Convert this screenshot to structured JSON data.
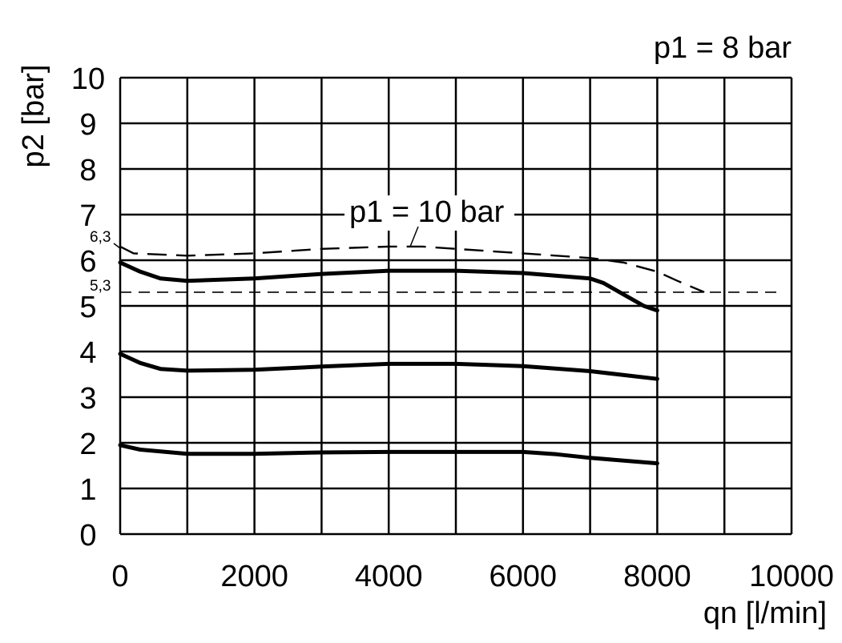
{
  "chart_data": {
    "type": "line",
    "title": "",
    "xlabel": "qn [l/min]",
    "ylabel": "p2 [bar]",
    "xlim": [
      0,
      10000
    ],
    "ylim": [
      0,
      10
    ],
    "x_ticks": [
      "0",
      "2000",
      "4000",
      "6000",
      "8000",
      "10000"
    ],
    "y_ticks": [
      "0",
      "1",
      "2",
      "3",
      "4",
      "5",
      "6",
      "7",
      "8",
      "9",
      "10"
    ],
    "grid": true,
    "annotations": {
      "p1_main": "p1 = 8 bar",
      "p1_dashed": "p1 = 10 bar",
      "ref_upper": "6,3",
      "ref_lower": "5,3"
    },
    "reference_line": {
      "y": 5.3,
      "x": [
        0,
        9800
      ]
    },
    "series": [
      {
        "style": "solid",
        "x": [
          0,
          300,
          600,
          1000,
          2000,
          3000,
          4000,
          5000,
          6000,
          7000,
          7200,
          7500,
          7800,
          8000
        ],
        "y": [
          5.95,
          5.75,
          5.6,
          5.55,
          5.6,
          5.7,
          5.77,
          5.77,
          5.72,
          5.6,
          5.5,
          5.25,
          5.0,
          4.9
        ]
      },
      {
        "style": "solid",
        "x": [
          0,
          300,
          600,
          1000,
          2000,
          3000,
          4000,
          5000,
          6000,
          7000,
          8000
        ],
        "y": [
          3.95,
          3.75,
          3.62,
          3.58,
          3.6,
          3.67,
          3.73,
          3.73,
          3.68,
          3.57,
          3.4
        ]
      },
      {
        "style": "solid",
        "x": [
          0,
          300,
          1000,
          2000,
          3000,
          4000,
          5000,
          6000,
          6500,
          7000,
          8000
        ],
        "y": [
          1.95,
          1.85,
          1.76,
          1.76,
          1.79,
          1.8,
          1.8,
          1.8,
          1.75,
          1.67,
          1.55
        ]
      },
      {
        "style": "dashed",
        "x": [
          0,
          200,
          1000,
          2000,
          3000,
          4000,
          4500,
          5000,
          6000,
          7000,
          7500,
          8000,
          8300,
          8700
        ],
        "y": [
          6.3,
          6.15,
          6.1,
          6.15,
          6.25,
          6.3,
          6.3,
          6.25,
          6.15,
          6.05,
          5.95,
          5.75,
          5.55,
          5.3
        ]
      }
    ]
  }
}
